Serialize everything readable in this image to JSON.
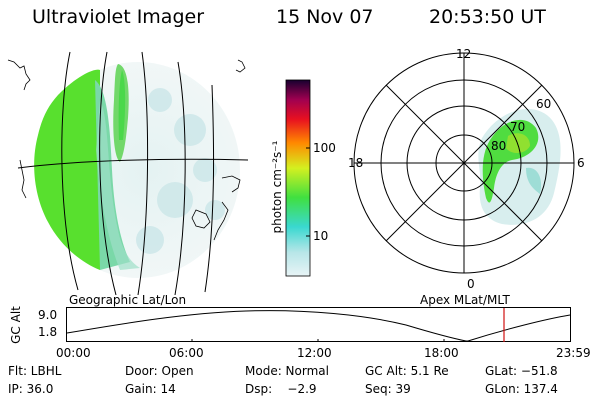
{
  "header": {
    "instrument": "Ultraviolet Imager",
    "date": "15 Nov 07",
    "time": "20:53:50 UT"
  },
  "colorbar": {
    "label": "photon cm⁻²s⁻¹",
    "ticks": [
      "100",
      "10"
    ]
  },
  "polar_plot": {
    "mlt_labels": [
      "12",
      "18",
      "6",
      "0"
    ],
    "lat_labels": [
      "60",
      "70",
      "80"
    ]
  },
  "geo_panel_label": "Geographic Lat/Lon",
  "apex_panel_label": "Apex MLat/MLT",
  "altitude_plot": {
    "axis_label": "GC Alt",
    "y_ticks": [
      "9.0",
      "1.8"
    ],
    "x_ticks": [
      "00:00",
      "06:00",
      "12:00",
      "18:00",
      "23:59"
    ],
    "current_time_marker_color": "#d01010"
  },
  "info_rows": [
    [
      {
        "text": "Flt: LBHL"
      },
      {
        "text": "Door: Open"
      },
      {
        "text": "Mode: Normal"
      },
      {
        "text": "GC Alt: 5.1 Re"
      },
      {
        "text": "GLat: −51.8"
      }
    ],
    [
      {
        "text": "IP: 36.0"
      },
      {
        "text": "Gain: 14"
      },
      {
        "text": "Dsp:    −2.9"
      },
      {
        "text": "Seq: 39"
      },
      {
        "text": "GLon: 137.4"
      }
    ]
  ]
}
